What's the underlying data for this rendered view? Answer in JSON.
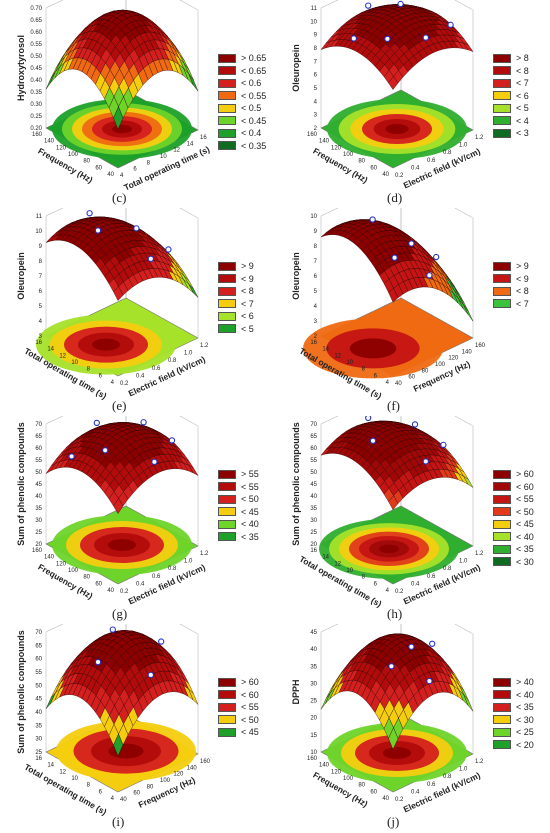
{
  "chart_data": [
    {
      "panel": "(c)",
      "type": "surface3d",
      "zlabel": "Hydroxytyrosol",
      "xlabel": "Total operating time (s)",
      "ylabel": "Frequency (Hz)",
      "zticks": [
        "0.70",
        "0.65",
        "0.60",
        "0.55",
        "0.50",
        "0.45",
        "0.40",
        "0.35",
        "0.30",
        "0.25",
        "0.20"
      ],
      "xticks": [
        "4",
        "6",
        "8",
        "10",
        "12",
        "14",
        "16"
      ],
      "yticks": [
        "40",
        "60",
        "80",
        "100",
        "120",
        "140",
        "160"
      ],
      "legend": [
        {
          "label": "> 0.65",
          "color": "#8c0000"
        },
        {
          "label": "< 0.65",
          "color": "#b10b0b"
        },
        {
          "label": "< 0.6",
          "color": "#d41f1f"
        },
        {
          "label": "< 0.55",
          "color": "#ef6a12"
        },
        {
          "label": "< 0.5",
          "color": "#f4cd0f"
        },
        {
          "label": "< 0.45",
          "color": "#6fd42a"
        },
        {
          "label": "< 0.4",
          "color": "#1ea02a"
        },
        {
          "label": "< 0.35",
          "color": "#0f6b22"
        }
      ]
    },
    {
      "panel": "(d)",
      "type": "surface3d",
      "zlabel": "Oleuropein",
      "xlabel": "Electric field (kV/cm)",
      "ylabel": "Frequency (Hz)",
      "zticks": [
        "11",
        "10",
        "9",
        "8",
        "7",
        "6",
        "5",
        "4",
        "3",
        "2"
      ],
      "xticks": [
        "0.2",
        "0.4",
        "0.6",
        "0.8",
        "1.0",
        "1.2"
      ],
      "yticks": [
        "40",
        "60",
        "80",
        "100",
        "120",
        "140",
        "160"
      ],
      "legend": [
        {
          "label": "> 8",
          "color": "#8c0000"
        },
        {
          "label": "< 8",
          "color": "#b10b0b"
        },
        {
          "label": "< 7",
          "color": "#d41f1f"
        },
        {
          "label": "< 6",
          "color": "#f4cd0f"
        },
        {
          "label": "< 5",
          "color": "#a6e22a"
        },
        {
          "label": "< 4",
          "color": "#2fae2f"
        },
        {
          "label": "< 3",
          "color": "#0f6b22"
        }
      ]
    },
    {
      "panel": "(e)",
      "type": "surface3d",
      "zlabel": "Oleuropein",
      "xlabel": "Electric field (kV/cm)",
      "ylabel": "Total operating time (s)",
      "zticks": [
        "11",
        "10",
        "9",
        "8",
        "7",
        "6",
        "5",
        "4",
        "3"
      ],
      "xticks": [
        "0.2",
        "0.4",
        "0.6",
        "0.8",
        "1.0",
        "1.2"
      ],
      "yticks": [
        "4",
        "6",
        "8",
        "10",
        "12",
        "14",
        "16"
      ],
      "legend": [
        {
          "label": "> 9",
          "color": "#8c0000"
        },
        {
          "label": "< 9",
          "color": "#b10b0b"
        },
        {
          "label": "< 8",
          "color": "#d41f1f"
        },
        {
          "label": "< 7",
          "color": "#f4cd0f"
        },
        {
          "label": "< 6",
          "color": "#a6e22a"
        },
        {
          "label": "< 5",
          "color": "#1ea02a"
        }
      ]
    },
    {
      "panel": "(f)",
      "type": "surface3d",
      "zlabel": "Oleuropein",
      "xlabel": "Frequency (Hz)",
      "ylabel": "Total operating time (s)",
      "zticks": [
        "10",
        "9",
        "8",
        "7",
        "6",
        "5",
        "4",
        "3",
        "2"
      ],
      "xticks": [
        "40",
        "60",
        "80",
        "100",
        "120",
        "140",
        "160"
      ],
      "yticks": [
        "4",
        "6",
        "8",
        "10",
        "12",
        "14",
        "16"
      ],
      "legend": [
        {
          "label": "> 9",
          "color": "#8c0000"
        },
        {
          "label": "< 9",
          "color": "#c41414"
        },
        {
          "label": "< 8",
          "color": "#ef6a12"
        },
        {
          "label": "< 7",
          "color": "#3cc23c"
        }
      ]
    },
    {
      "panel": "(g)",
      "type": "surface3d",
      "zlabel": "Sum of phenolic compounds",
      "xlabel": "Electric field (kV/cm)",
      "ylabel": "Frequency (Hz)",
      "zticks": [
        "70",
        "65",
        "60",
        "55",
        "50",
        "45",
        "40",
        "35",
        "30",
        "25",
        "20"
      ],
      "xticks": [
        "0.2",
        "0.4",
        "0.6",
        "0.8",
        "1.0",
        "1.2"
      ],
      "yticks": [
        "40",
        "60",
        "80",
        "100",
        "120",
        "140",
        "160"
      ],
      "legend": [
        {
          "label": "> 55",
          "color": "#8c0000"
        },
        {
          "label": "< 55",
          "color": "#b10b0b"
        },
        {
          "label": "< 50",
          "color": "#d41f1f"
        },
        {
          "label": "< 45",
          "color": "#f4cd0f"
        },
        {
          "label": "< 40",
          "color": "#6fd42a"
        },
        {
          "label": "< 35",
          "color": "#1ea02a"
        }
      ]
    },
    {
      "panel": "(h)",
      "type": "surface3d",
      "zlabel": "Sum of phenolic compounds",
      "xlabel": "Electric field (kV/cm)",
      "ylabel": "Total operating time (s)",
      "zticks": [
        "70",
        "65",
        "60",
        "55",
        "50",
        "45",
        "40",
        "35",
        "30",
        "25",
        "20"
      ],
      "xticks": [
        "0.2",
        "0.4",
        "0.6",
        "0.8",
        "1.0",
        "1.2"
      ],
      "yticks": [
        "4",
        "6",
        "8",
        "10",
        "12",
        "14",
        "16"
      ],
      "legend": [
        {
          "label": "> 60",
          "color": "#8c0000"
        },
        {
          "label": "< 60",
          "color": "#a00808"
        },
        {
          "label": "< 55",
          "color": "#c41414"
        },
        {
          "label": "< 50",
          "color": "#e03a1a"
        },
        {
          "label": "< 45",
          "color": "#f4cd0f"
        },
        {
          "label": "< 40",
          "color": "#a6e22a"
        },
        {
          "label": "< 35",
          "color": "#2fae2f"
        },
        {
          "label": "< 30",
          "color": "#0f6b22"
        }
      ]
    },
    {
      "panel": "(i)",
      "type": "surface3d",
      "zlabel": "Sum of phenolic compounds",
      "xlabel": "Frequency (Hz)",
      "ylabel": "Total operating time (s)",
      "zticks": [
        "70",
        "65",
        "60",
        "55",
        "50",
        "45",
        "40",
        "35",
        "30",
        "25"
      ],
      "xticks": [
        "40",
        "60",
        "80",
        "100",
        "120",
        "140",
        "160"
      ],
      "yticks": [
        "4",
        "6",
        "8",
        "10",
        "12",
        "14",
        "16"
      ],
      "legend": [
        {
          "label": "> 60",
          "color": "#8c0000"
        },
        {
          "label": "< 60",
          "color": "#b10b0b"
        },
        {
          "label": "< 55",
          "color": "#d41f1f"
        },
        {
          "label": "< 50",
          "color": "#f4cd0f"
        },
        {
          "label": "< 45",
          "color": "#1ea02a"
        }
      ]
    },
    {
      "panel": "(j)",
      "type": "surface3d",
      "zlabel": "DPPH",
      "xlabel": "Electric field (kV/cm)",
      "ylabel": "Frequency (Hz)",
      "zticks": [
        "45",
        "40",
        "35",
        "30",
        "25",
        "20",
        "15",
        "10"
      ],
      "xticks": [
        "0.2",
        "0.4",
        "0.6",
        "0.8",
        "1.0",
        "1.2"
      ],
      "yticks": [
        "40",
        "60",
        "80",
        "100",
        "120",
        "140",
        "160"
      ],
      "legend": [
        {
          "label": "> 40",
          "color": "#8c0000"
        },
        {
          "label": "< 40",
          "color": "#b10b0b"
        },
        {
          "label": "< 35",
          "color": "#d41f1f"
        },
        {
          "label": "< 30",
          "color": "#f4cd0f"
        },
        {
          "label": "< 25",
          "color": "#6fd42a"
        },
        {
          "label": "< 20",
          "color": "#1ea02a"
        }
      ]
    }
  ]
}
